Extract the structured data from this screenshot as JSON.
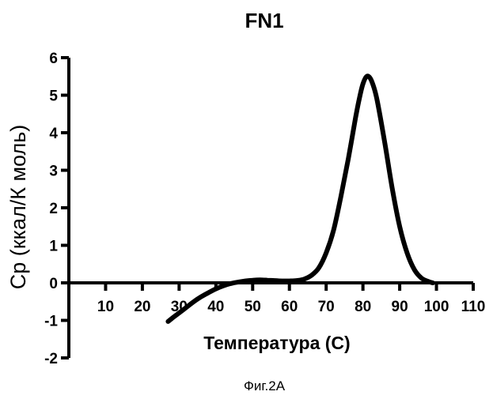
{
  "chart_data": {
    "type": "line",
    "title": "FN1",
    "xlabel": "Температура (С)",
    "ylabel": "Ср (ккал/К моль)",
    "caption": "Фиг.2А",
    "xlim": [
      0,
      110
    ],
    "ylim": [
      -2,
      6
    ],
    "xticks": [
      10,
      20,
      30,
      40,
      50,
      60,
      70,
      80,
      90,
      100,
      110
    ],
    "yticks": [
      6,
      5,
      4,
      3,
      2,
      1,
      0,
      -1,
      -2
    ],
    "grid": false,
    "series": [
      {
        "x": [
          27,
          28,
          30,
          32,
          34,
          36,
          38,
          40,
          42,
          44,
          46,
          48,
          50,
          52,
          54,
          56,
          58,
          60,
          62,
          64,
          66,
          68,
          70,
          72,
          74,
          76,
          78,
          79,
          80,
          81,
          82,
          83,
          84,
          86,
          88,
          90,
          92,
          94,
          96,
          98,
          99
        ],
        "y": [
          -1.03,
          -0.95,
          -0.8,
          -0.65,
          -0.5,
          -0.37,
          -0.26,
          -0.16,
          -0.08,
          -0.02,
          0.02,
          0.05,
          0.07,
          0.08,
          0.07,
          0.06,
          0.05,
          0.05,
          0.06,
          0.1,
          0.2,
          0.4,
          0.8,
          1.4,
          2.3,
          3.3,
          4.4,
          4.9,
          5.3,
          5.5,
          5.45,
          5.2,
          4.8,
          3.7,
          2.5,
          1.5,
          0.8,
          0.35,
          0.12,
          0.03,
          0.0
        ]
      }
    ]
  }
}
